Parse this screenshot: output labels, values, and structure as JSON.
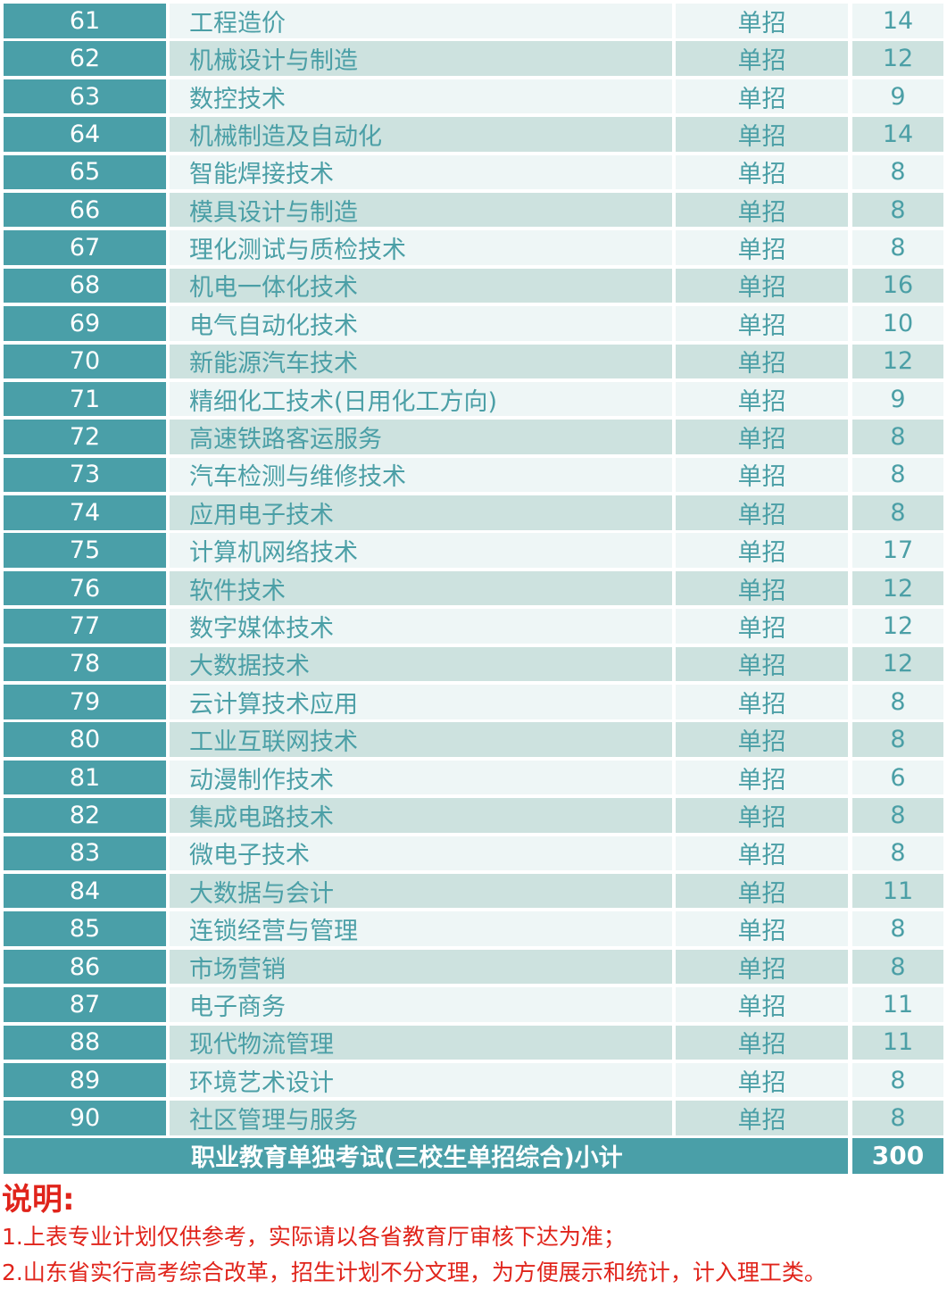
{
  "rows": [
    [
      "61",
      "工程造价",
      "单招",
      "14"
    ],
    [
      "62",
      "机械设计与制造",
      "单招",
      "12"
    ],
    [
      "63",
      "数控技术",
      "单招",
      "9"
    ],
    [
      "64",
      "机械制造及自动化",
      "单招",
      "14"
    ],
    [
      "65",
      "智能焊接技术",
      "单招",
      "8"
    ],
    [
      "66",
      "模具设计与制造",
      "单招",
      "8"
    ],
    [
      "67",
      "理化测试与质检技术",
      "单招",
      "8"
    ],
    [
      "68",
      "机电一体化技术",
      "单招",
      "16"
    ],
    [
      "69",
      "电气自动化技术",
      "单招",
      "10"
    ],
    [
      "70",
      "新能源汽车技术",
      "单招",
      "12"
    ],
    [
      "71",
      "精细化工技术(日用化工方向)",
      "单招",
      "9"
    ],
    [
      "72",
      "高速铁路客运服务",
      "单招",
      "8"
    ],
    [
      "73",
      "汽车检测与维修技术",
      "单招",
      "8"
    ],
    [
      "74",
      "应用电子技术",
      "单招",
      "8"
    ],
    [
      "75",
      "计算机网络技术",
      "单招",
      "17"
    ],
    [
      "76",
      "软件技术",
      "单招",
      "12"
    ],
    [
      "77",
      "数字媒体技术",
      "单招",
      "12"
    ],
    [
      "78",
      "大数据技术",
      "单招",
      "12"
    ],
    [
      "79",
      "云计算技术应用",
      "单招",
      "8"
    ],
    [
      "80",
      "工业互联网技术",
      "单招",
      "8"
    ],
    [
      "81",
      "动漫制作技术",
      "单招",
      "6"
    ],
    [
      "82",
      "集成电路技术",
      "单招",
      "8"
    ],
    [
      "83",
      "微电子技术",
      "单招",
      "8"
    ],
    [
      "84",
      "大数据与会计",
      "单招",
      "11"
    ],
    [
      "85",
      "连锁经营与管理",
      "单招",
      "8"
    ],
    [
      "86",
      "市场营销",
      "单招",
      "8"
    ],
    [
      "87",
      "电子商务",
      "单招",
      "11"
    ],
    [
      "88",
      "现代物流管理",
      "单招",
      "11"
    ],
    [
      "89",
      "环境艺术设计",
      "单招",
      "8"
    ],
    [
      "90",
      "社区管理与服务",
      "单招",
      "8"
    ]
  ],
  "total": {
    "label": "职业教育单独考试(三校生单招综合)小计",
    "value": "300"
  },
  "notes": {
    "title": "说明:",
    "lines": [
      "1.上表专业计划仅供参考，实际请以各省教育厅审核下达为准；",
      "2.山东省实行高考综合改革，招生计划不分文理，为方便展示和统计，计入理工类。"
    ]
  },
  "colors": {
    "header": "#4a9fa8",
    "row_light": "#eef6f6",
    "row_dark": "#cde2df",
    "note": "#e0241b"
  }
}
